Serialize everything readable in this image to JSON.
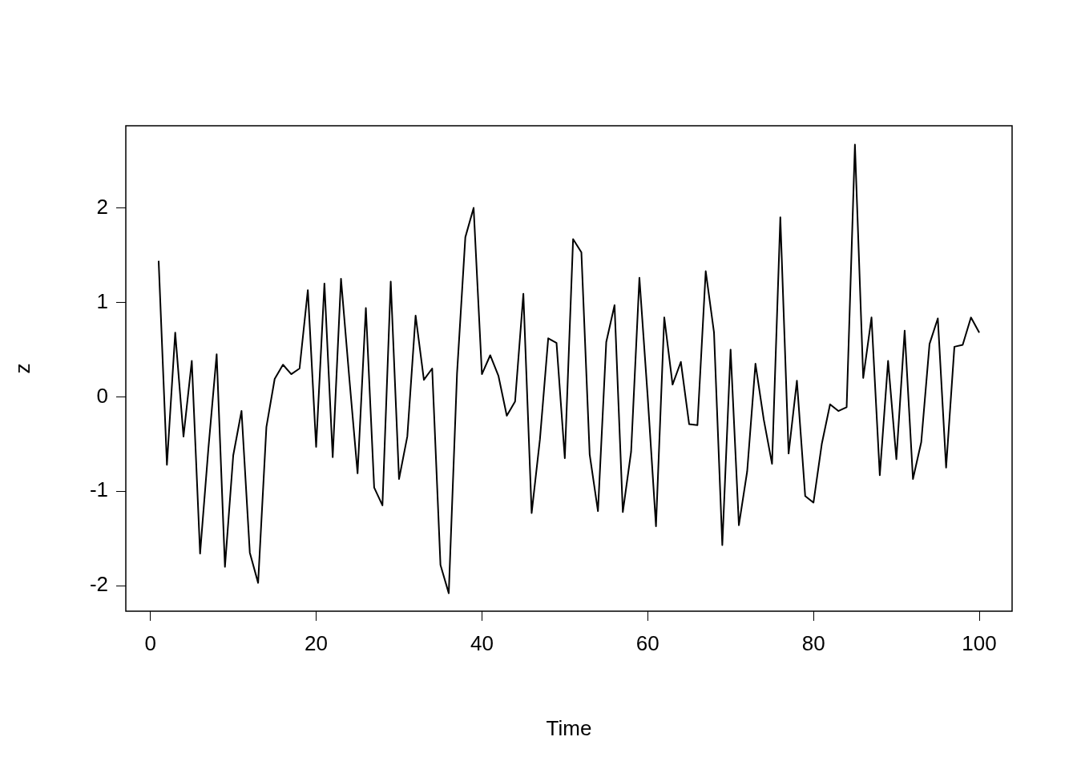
{
  "chart_data": {
    "type": "line",
    "xlabel": "Time",
    "ylabel": "z",
    "x": [
      1,
      2,
      3,
      4,
      5,
      6,
      7,
      8,
      9,
      10,
      11,
      12,
      13,
      14,
      15,
      16,
      17,
      18,
      19,
      20,
      21,
      22,
      23,
      24,
      25,
      26,
      27,
      28,
      29,
      30,
      31,
      32,
      33,
      34,
      35,
      36,
      37,
      38,
      39,
      40,
      41,
      42,
      43,
      44,
      45,
      46,
      47,
      48,
      49,
      50,
      51,
      52,
      53,
      54,
      55,
      56,
      57,
      58,
      59,
      60,
      61,
      62,
      63,
      64,
      65,
      66,
      67,
      68,
      69,
      70,
      71,
      72,
      73,
      74,
      75,
      76,
      77,
      78,
      79,
      80,
      81,
      82,
      83,
      84,
      85,
      86,
      87,
      88,
      89,
      90,
      91,
      92,
      93,
      94,
      95,
      96,
      97,
      98,
      99,
      100
    ],
    "values": [
      1.44,
      -0.72,
      0.68,
      -0.42,
      0.38,
      -1.66,
      -0.55,
      0.45,
      -1.8,
      -0.62,
      -0.15,
      -1.65,
      -1.97,
      -0.32,
      0.19,
      0.34,
      0.24,
      0.3,
      1.13,
      -0.53,
      1.2,
      -0.64,
      1.25,
      0.2,
      -0.81,
      0.94,
      -0.96,
      -1.15,
      1.22,
      -0.87,
      -0.42,
      0.86,
      0.18,
      0.3,
      -1.78,
      -2.08,
      0.25,
      1.69,
      2.0,
      0.24,
      0.44,
      0.22,
      -0.2,
      -0.05,
      1.09,
      -1.23,
      -0.45,
      0.62,
      0.57,
      -0.65,
      1.67,
      1.53,
      -0.61,
      -1.21,
      0.58,
      0.97,
      -1.22,
      -0.58,
      1.26,
      0.0,
      -1.37,
      0.84,
      0.13,
      0.37,
      -0.29,
      -0.3,
      1.33,
      0.68,
      -1.57,
      0.5,
      -1.36,
      -0.79,
      0.35,
      -0.24,
      -0.71,
      1.9,
      -0.6,
      0.17,
      -1.05,
      -1.12,
      -0.5,
      -0.08,
      -0.15,
      -0.11,
      2.67,
      0.2,
      0.84,
      -0.83,
      0.38,
      -0.66,
      0.7,
      -0.87,
      -0.48,
      0.56,
      0.83,
      -0.75,
      0.53,
      0.55,
      0.84,
      0.68
    ],
    "color": "#000000",
    "xlim": [
      -2.96,
      103.96
    ],
    "ylim": [
      -2.27,
      2.87
    ],
    "xticks": [
      0,
      20,
      40,
      60,
      80,
      100
    ],
    "yticks": [
      -2,
      -1,
      0,
      1,
      2
    ],
    "marker": "none",
    "line_style": "solid"
  }
}
